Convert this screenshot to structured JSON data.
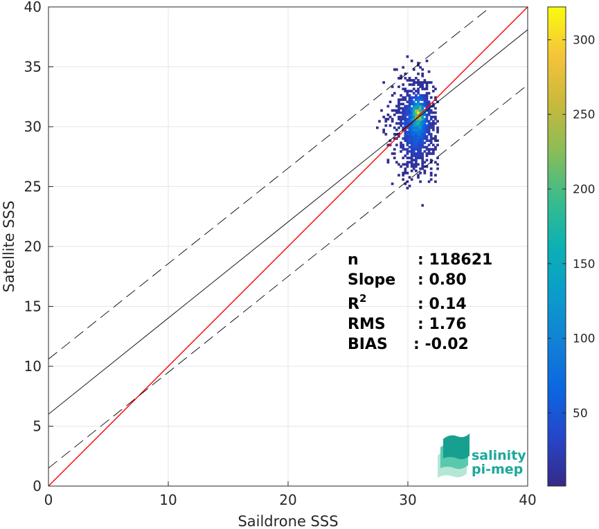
{
  "chart_data": {
    "type": "heatmap",
    "title": "",
    "xlabel": "Saildrone SSS",
    "ylabel": "Satellite SSS",
    "xlim": [
      0,
      40
    ],
    "ylim": [
      0,
      40
    ],
    "xticks": [
      "0",
      "10",
      "20",
      "30",
      "40"
    ],
    "yticks": [
      "0",
      "5",
      "10",
      "15",
      "20",
      "25",
      "30",
      "35",
      "40"
    ],
    "grid": true,
    "colorbar": {
      "range": [
        1,
        322
      ],
      "ticks": [
        "50",
        "100",
        "150",
        "200",
        "250",
        "300"
      ],
      "tick_values": [
        50,
        100,
        150,
        200,
        250,
        300
      ],
      "colormap": "parula"
    },
    "density_cluster": {
      "center_x": 30.6,
      "center_y": 30.0,
      "x_extent": [
        25.0,
        32.5
      ],
      "y_extent": [
        21.2,
        38.0
      ],
      "peak_count": 322,
      "peak_location": [
        30.8,
        31.0
      ]
    },
    "lines": [
      {
        "name": "one-to-one",
        "color": "#ff0000",
        "style": "solid",
        "x": [
          0,
          40
        ],
        "y": [
          0,
          40
        ]
      },
      {
        "name": "regression",
        "color": "#000000",
        "style": "solid",
        "x": [
          0,
          40
        ],
        "y": [
          6.0,
          38.1
        ]
      },
      {
        "name": "upper-bound",
        "color": "#000000",
        "style": "dashed",
        "x": [
          0,
          36.9
        ],
        "y": [
          10.6,
          40.0
        ]
      },
      {
        "name": "lower-bound",
        "color": "#000000",
        "style": "dashed",
        "x": [
          0,
          40
        ],
        "y": [
          1.5,
          33.5
        ]
      }
    ],
    "stats": [
      {
        "label": "n",
        "value": ": 118621"
      },
      {
        "label": "Slope",
        "value": ": 0.80"
      },
      {
        "label": "R",
        "sup": "2",
        "value": ": 0.14"
      },
      {
        "label": "RMS",
        "value": ": 1.76"
      },
      {
        "label": "BIAS",
        "value": ": -0.02"
      }
    ]
  },
  "logo": {
    "line1": "salinity",
    "line2": "pi-mep"
  }
}
